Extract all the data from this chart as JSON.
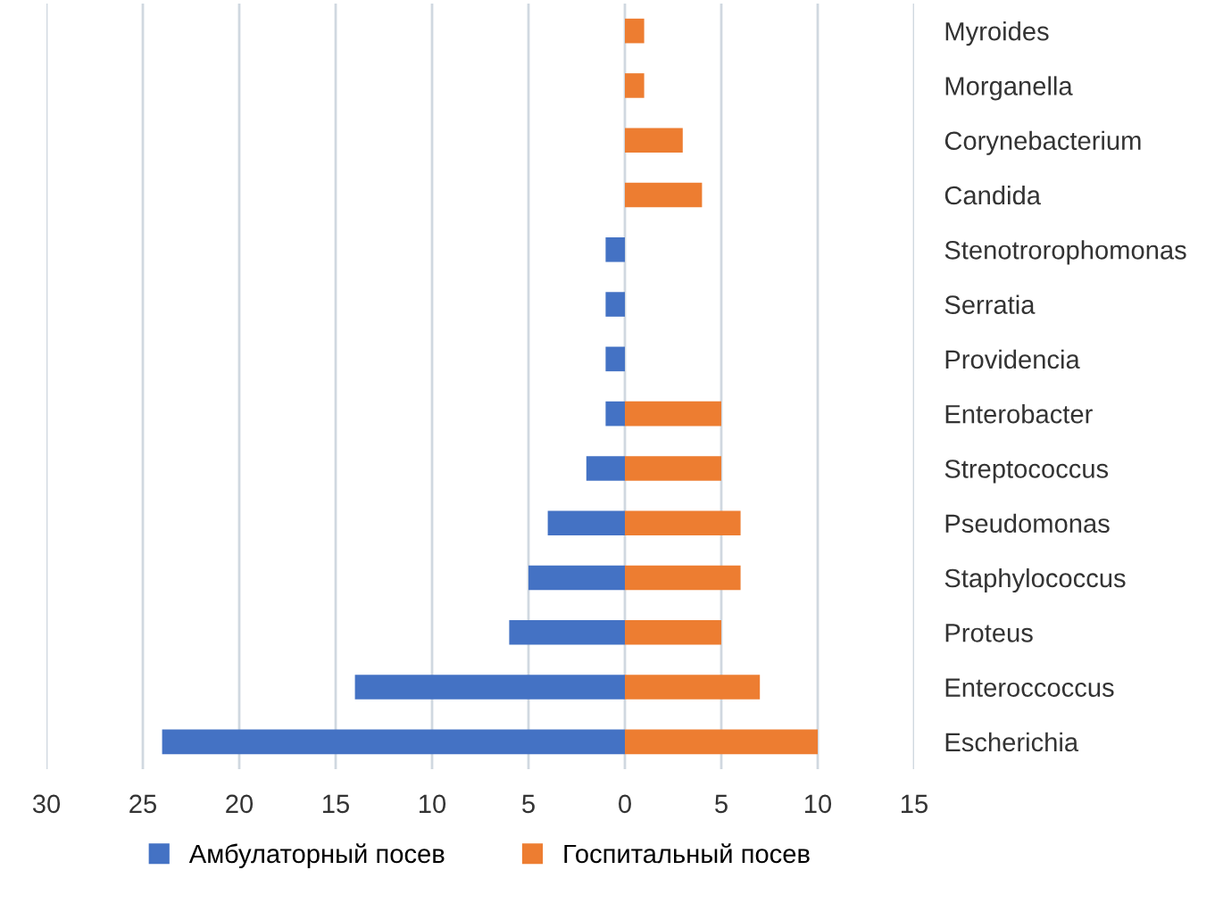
{
  "chart_data": {
    "type": "bar",
    "orientation": "horizontal",
    "categories": [
      "Myroides",
      "Morganella",
      "Corynebacterium",
      "Candida",
      "Stenotrorophomonas",
      "Serratia",
      "Providencia",
      "Enterobacter",
      "Streptococcus",
      "Pseudomonas",
      "Staphylococcus",
      "Proteus",
      "Enteroccoccus",
      "Escherichia"
    ],
    "series": [
      {
        "name": "Амбулаторный посев",
        "color": "#4472c4",
        "values": [
          null,
          null,
          null,
          null,
          -1,
          -1,
          -1,
          -1,
          -2,
          -4,
          -5,
          -6,
          -14,
          -24
        ]
      },
      {
        "name": "Госпитальный посев",
        "color": "#ed7d31",
        "values": [
          1,
          1,
          3,
          4,
          null,
          null,
          null,
          5,
          5,
          6,
          6,
          5,
          7,
          10
        ]
      }
    ],
    "xlim": [
      -30,
      15
    ],
    "xticks": [
      {
        "value": -30,
        "label": "30"
      },
      {
        "value": -25,
        "label": "25"
      },
      {
        "value": -20,
        "label": "20"
      },
      {
        "value": -15,
        "label": "15"
      },
      {
        "value": -10,
        "label": "10"
      },
      {
        "value": -5,
        "label": "5"
      },
      0,
      5,
      10,
      15
    ],
    "grid": "x",
    "legend": "bottom",
    "stacked": true
  }
}
